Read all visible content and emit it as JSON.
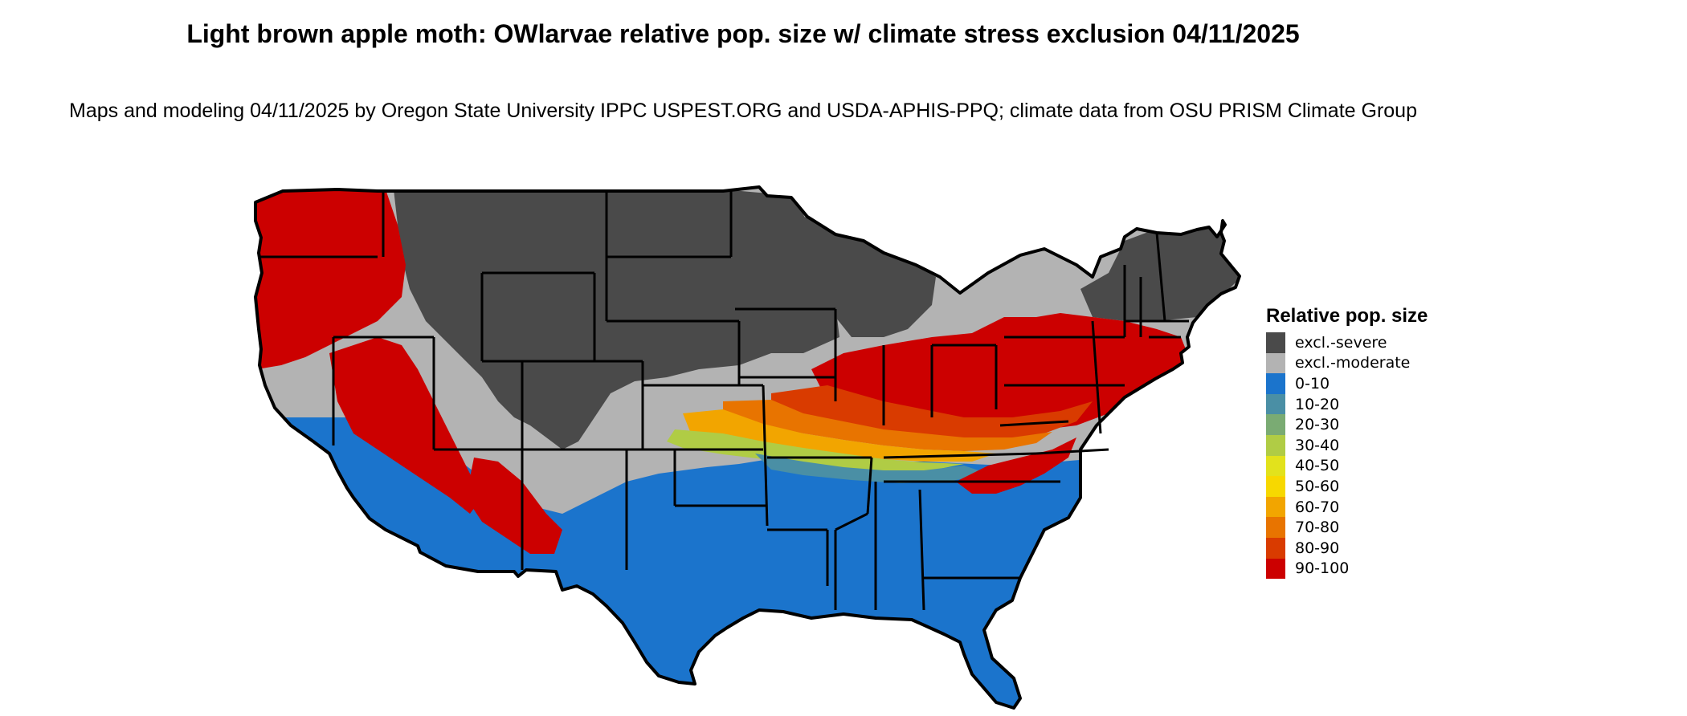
{
  "title": "Light brown apple moth: OWlarvae relative pop. size w/ climate stress exclusion 04/11/2025",
  "subtitle": "Maps and modeling 04/11/2025 by Oregon State University IPPC USPEST.ORG and USDA-APHIS-PPQ; climate data from OSU PRISM Climate Group",
  "legend": {
    "title": "Relative pop. size",
    "items": [
      {
        "label": "excl.-severe",
        "color": "#4a4a4a"
      },
      {
        "label": "excl.-moderate",
        "color": "#b3b3b3"
      },
      {
        "label": "0-10",
        "color": "#1b74cc"
      },
      {
        "label": "10-20",
        "color": "#4a8fa5"
      },
      {
        "label": "20-30",
        "color": "#7aab73"
      },
      {
        "label": "30-40",
        "color": "#b0cc45"
      },
      {
        "label": "40-50",
        "color": "#e2e21c"
      },
      {
        "label": "50-60",
        "color": "#f7d800"
      },
      {
        "label": "60-70",
        "color": "#f2a500"
      },
      {
        "label": "70-80",
        "color": "#e87400"
      },
      {
        "label": "80-90",
        "color": "#d93b00"
      },
      {
        "label": "90-100",
        "color": "#cc0000"
      }
    ]
  },
  "map": {
    "region": "Contiguous United States",
    "zones": [
      {
        "name": "northern-plains-rockies",
        "category": "excl.-severe"
      },
      {
        "name": "upper-midwest",
        "category": "excl.-severe"
      },
      {
        "name": "northern-new-england",
        "category": "excl.-severe"
      },
      {
        "name": "central-band",
        "category": "excl.-moderate"
      },
      {
        "name": "pacific-northwest",
        "category": "90-100"
      },
      {
        "name": "lower-midwest-mid-atlantic",
        "category": "90-100"
      },
      {
        "name": "southern-transition",
        "category": "10-20"
      },
      {
        "name": "southwest-and-south",
        "category": "0-10"
      }
    ]
  }
}
